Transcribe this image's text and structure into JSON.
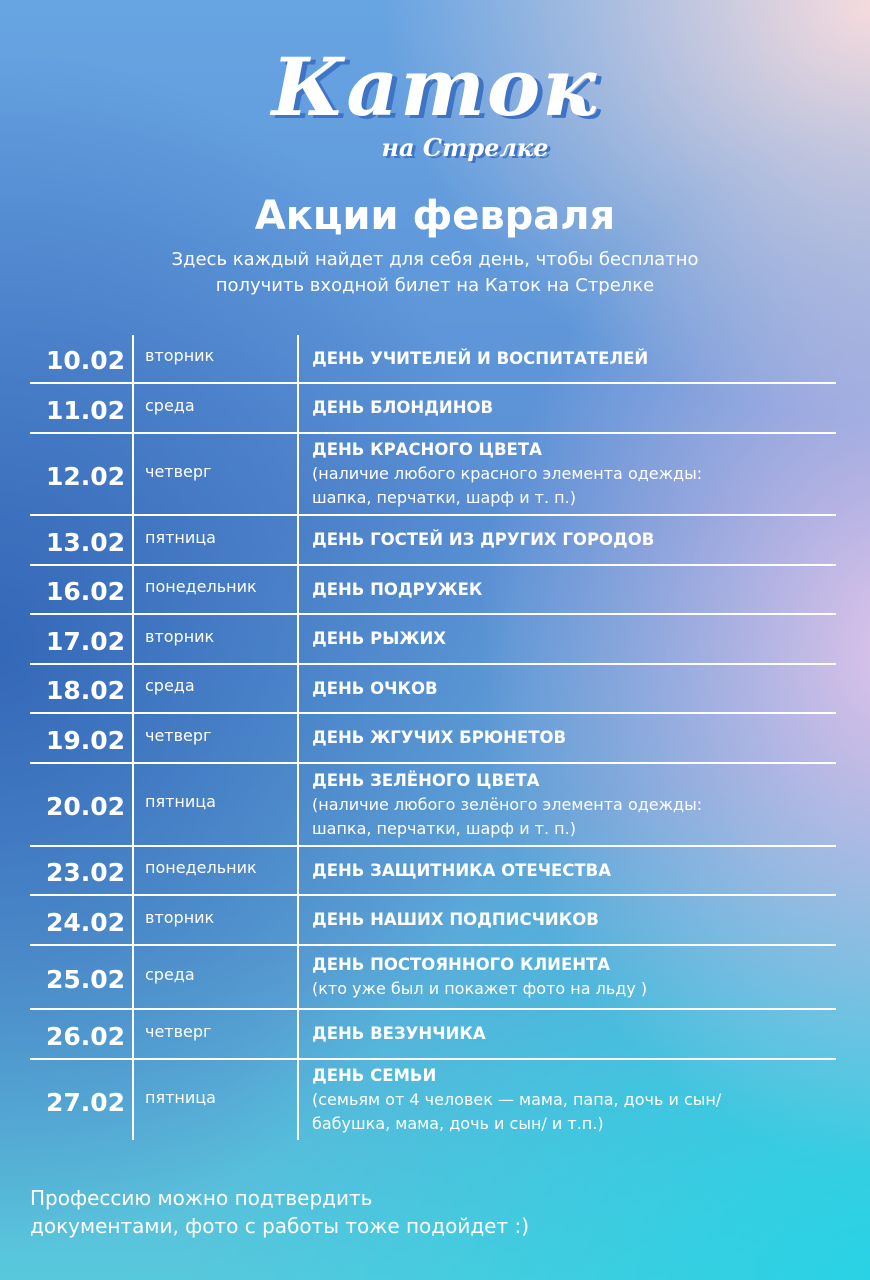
{
  "logo": {
    "main": "Каток",
    "sub": "на Стрелке"
  },
  "title": "Акции февраля",
  "subtitle": [
    "Здесь каждый найдет для себя день, чтобы бесплатно",
    "получить входной билет на Каток на Стрелке"
  ],
  "rows": [
    {
      "date": "10.02",
      "day": "вторник",
      "name": "ДЕНЬ УЧИТЕЛЕЙ И ВОСПИТАТЕЛЕЙ",
      "note": []
    },
    {
      "date": "11.02",
      "day": "среда",
      "name": "ДЕНЬ БЛОНДИНОВ",
      "note": []
    },
    {
      "date": "12.02",
      "day": "четверг",
      "name": "ДЕНЬ КРАСНОГО ЦВЕТА",
      "note": [
        "(наличие любого красного элемента одежды:",
        "шапка, перчатки, шарф и т. п.)"
      ]
    },
    {
      "date": "13.02",
      "day": "пятница",
      "name": "ДЕНЬ ГОСТЕЙ ИЗ ДРУГИХ ГОРОДОВ",
      "note": []
    },
    {
      "date": "16.02",
      "day": "понедельник",
      "name": "ДЕНЬ ПОДРУЖЕК",
      "note": []
    },
    {
      "date": "17.02",
      "day": "вторник",
      "name": "ДЕНЬ РЫЖИХ",
      "note": []
    },
    {
      "date": "18.02",
      "day": "среда",
      "name": "ДЕНЬ ОЧКОВ",
      "note": []
    },
    {
      "date": "19.02",
      "day": "четверг",
      "name": "ДЕНЬ ЖГУЧИХ БРЮНЕТОВ",
      "note": []
    },
    {
      "date": "20.02",
      "day": "пятница",
      "name": "ДЕНЬ ЗЕЛЁНОГО ЦВЕТА",
      "note": [
        "(наличие любого зелёного элемента одежды:",
        "шапка, перчатки, шарф и т. п.)"
      ]
    },
    {
      "date": "23.02",
      "day": "понедельник",
      "name": "ДЕНЬ ЗАЩИТНИКА ОТЕЧЕСТВА",
      "note": []
    },
    {
      "date": "24.02",
      "day": "вторник",
      "name": "ДЕНЬ НАШИХ ПОДПИСЧИКОВ",
      "note": []
    },
    {
      "date": "25.02",
      "day": "среда",
      "name": "ДЕНЬ ПОСТОЯННОГО КЛИЕНТА",
      "note": [
        "(кто уже был и покажет фото на льду )"
      ]
    },
    {
      "date": "26.02",
      "day": "четверг",
      "name": "ДЕНЬ ВЕЗУНЧИКА",
      "note": []
    },
    {
      "date": "27.02",
      "day": "пятница",
      "name": "ДЕНЬ СЕМЬИ",
      "note": [
        "(семьям от 4 человек — мама, папа, дочь и сын/",
        "бабушка, мама, дочь и сын/ и т.п.)"
      ]
    }
  ],
  "footer": [
    "Профессию можно подтвердить",
    "документами, фото с работы тоже подойдет :)"
  ]
}
